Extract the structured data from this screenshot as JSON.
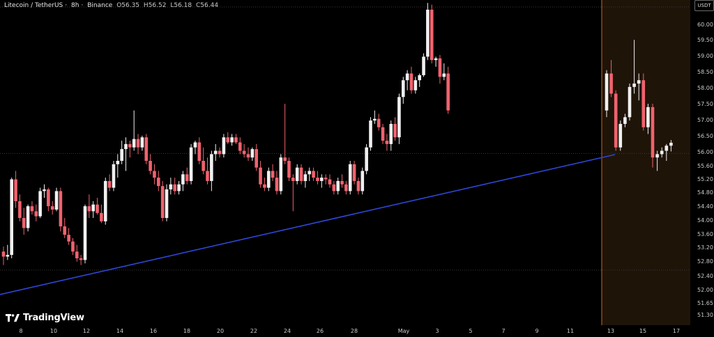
{
  "header": {
    "symbol": "Litecoin / TetherUS",
    "interval": "8h",
    "exchange": "Binance",
    "open": "O56.35",
    "high": "H56.52",
    "low": "L56.18",
    "close": "C56.44"
  },
  "unit_badge": "USDT",
  "brand": "TradingView",
  "colors": {
    "up": "#f0f0f0",
    "down": "#f0626e",
    "trendline": "#2f46d8",
    "highlight": "#1f1408",
    "highlight_edge": "#c86a1e",
    "background": "#000000"
  },
  "chart_data": {
    "type": "candlestick",
    "ylim": [
      51.0,
      60.65
    ],
    "y_ticks": [
      "60.00",
      "59.50",
      "59.00",
      "58.50",
      "58.00",
      "57.50",
      "57.00",
      "56.50",
      "56.00",
      "55.60",
      "55.20",
      "54.80",
      "54.40",
      "54.00",
      "53.60",
      "53.20",
      "52.80",
      "52.40",
      "52.00",
      "51.65",
      "51.30"
    ],
    "x_ticks": [
      "8",
      "10",
      "12",
      "14",
      "16",
      "18",
      "20",
      "22",
      "24",
      "26",
      "28",
      "May",
      "3",
      "5",
      "7",
      "9",
      "11",
      "13",
      "15",
      "17"
    ],
    "reference_lines": [
      60.48,
      56.12,
      52.65
    ],
    "trendline": {
      "from": {
        "index": 0,
        "price": 52.15
      },
      "to": {
        "index": 153,
        "price": 55.95
      }
    },
    "highlight_zone": {
      "from_index": 137,
      "to": "end"
    },
    "candles": [
      [
        53.2,
        53.35,
        52.8,
        53.05
      ],
      [
        53.05,
        53.4,
        52.95,
        53.1
      ],
      [
        53.1,
        55.4,
        53.0,
        55.35
      ],
      [
        55.35,
        55.6,
        54.5,
        54.7
      ],
      [
        54.7,
        54.9,
        54.1,
        54.2
      ],
      [
        54.2,
        54.5,
        53.7,
        53.9
      ],
      [
        53.9,
        54.6,
        53.8,
        54.55
      ],
      [
        54.55,
        54.7,
        54.3,
        54.4
      ],
      [
        54.4,
        54.6,
        54.1,
        54.25
      ],
      [
        54.25,
        55.1,
        54.2,
        55.0
      ],
      [
        55.0,
        55.2,
        54.8,
        55.05
      ],
      [
        55.05,
        55.1,
        54.4,
        54.55
      ],
      [
        54.55,
        54.7,
        54.3,
        54.45
      ],
      [
        54.45,
        55.1,
        54.4,
        55.0
      ],
      [
        55.0,
        55.1,
        53.8,
        53.95
      ],
      [
        53.95,
        54.2,
        53.6,
        53.7
      ],
      [
        53.7,
        53.9,
        53.4,
        53.5
      ],
      [
        53.5,
        53.6,
        53.1,
        53.2
      ],
      [
        53.2,
        53.4,
        52.9,
        53.0
      ],
      [
        53.0,
        53.1,
        52.8,
        52.95
      ],
      [
        52.95,
        54.6,
        52.85,
        54.55
      ],
      [
        54.55,
        54.9,
        54.2,
        54.4
      ],
      [
        54.4,
        54.7,
        54.2,
        54.6
      ],
      [
        54.6,
        54.8,
        54.3,
        54.35
      ],
      [
        54.35,
        54.6,
        54.05,
        54.1
      ],
      [
        54.1,
        55.4,
        54.0,
        55.3
      ],
      [
        55.3,
        55.5,
        55.0,
        55.1
      ],
      [
        55.1,
        55.9,
        55.0,
        55.8
      ],
      [
        55.8,
        56.1,
        55.4,
        55.9
      ],
      [
        55.9,
        56.5,
        55.8,
        56.25
      ],
      [
        56.25,
        56.6,
        55.6,
        56.4
      ],
      [
        56.4,
        56.5,
        56.0,
        56.3
      ],
      [
        56.3,
        57.4,
        56.2,
        56.55
      ],
      [
        56.55,
        56.7,
        56.1,
        56.3
      ],
      [
        56.3,
        56.65,
        56.2,
        56.6
      ],
      [
        56.6,
        56.7,
        55.8,
        55.9
      ],
      [
        55.9,
        56.1,
        55.5,
        55.6
      ],
      [
        55.6,
        55.8,
        55.2,
        55.4
      ],
      [
        55.4,
        55.6,
        55.0,
        55.15
      ],
      [
        55.15,
        55.3,
        54.1,
        54.2
      ],
      [
        54.2,
        55.2,
        54.1,
        55.05
      ],
      [
        55.05,
        55.4,
        54.9,
        55.2
      ],
      [
        55.2,
        55.4,
        54.9,
        55.0
      ],
      [
        55.0,
        55.3,
        54.9,
        55.2
      ],
      [
        55.2,
        55.6,
        55.0,
        55.5
      ],
      [
        55.5,
        55.7,
        55.2,
        55.3
      ],
      [
        55.3,
        56.4,
        55.2,
        56.3
      ],
      [
        56.3,
        56.5,
        56.1,
        56.45
      ],
      [
        56.45,
        56.6,
        55.8,
        55.9
      ],
      [
        55.9,
        56.3,
        55.5,
        55.6
      ],
      [
        55.6,
        56.0,
        55.2,
        55.3
      ],
      [
        55.3,
        56.2,
        55.0,
        56.1
      ],
      [
        56.1,
        56.4,
        55.9,
        56.2
      ],
      [
        56.2,
        56.3,
        56.0,
        56.1
      ],
      [
        56.1,
        56.7,
        56.0,
        56.6
      ],
      [
        56.6,
        56.75,
        56.4,
        56.45
      ],
      [
        56.45,
        56.7,
        56.35,
        56.6
      ],
      [
        56.6,
        56.7,
        56.4,
        56.45
      ],
      [
        56.45,
        56.6,
        56.1,
        56.2
      ],
      [
        56.2,
        56.4,
        56.0,
        56.1
      ],
      [
        56.1,
        56.3,
        55.9,
        56.0
      ],
      [
        56.0,
        56.3,
        55.9,
        56.25
      ],
      [
        56.25,
        56.4,
        55.6,
        55.7
      ],
      [
        55.7,
        55.9,
        55.1,
        55.2
      ],
      [
        55.2,
        55.4,
        55.0,
        55.1
      ],
      [
        55.1,
        55.7,
        55.0,
        55.6
      ],
      [
        55.6,
        55.8,
        55.3,
        55.4
      ],
      [
        55.4,
        55.6,
        54.9,
        55.0
      ],
      [
        55.0,
        56.1,
        54.9,
        56.0
      ],
      [
        56.0,
        57.6,
        55.8,
        55.9
      ],
      [
        55.9,
        56.0,
        55.3,
        55.4
      ],
      [
        55.4,
        55.5,
        54.4,
        55.3
      ],
      [
        55.3,
        55.8,
        55.2,
        55.7
      ],
      [
        55.7,
        55.8,
        55.2,
        55.3
      ],
      [
        55.3,
        55.6,
        55.1,
        55.5
      ],
      [
        55.5,
        55.7,
        55.3,
        55.6
      ],
      [
        55.6,
        55.7,
        55.3,
        55.4
      ],
      [
        55.4,
        55.6,
        55.2,
        55.3
      ],
      [
        55.3,
        55.5,
        55.1,
        55.4
      ],
      [
        55.4,
        55.5,
        55.2,
        55.35
      ],
      [
        55.35,
        55.5,
        55.1,
        55.2
      ],
      [
        55.2,
        55.3,
        54.9,
        55.0
      ],
      [
        55.0,
        55.4,
        54.9,
        55.3
      ],
      [
        55.3,
        55.5,
        55.1,
        55.2
      ],
      [
        55.2,
        55.3,
        54.9,
        55.0
      ],
      [
        55.0,
        55.9,
        54.9,
        55.8
      ],
      [
        55.8,
        55.9,
        55.2,
        55.3
      ],
      [
        55.3,
        55.4,
        54.9,
        55.0
      ],
      [
        55.0,
        55.7,
        54.9,
        55.6
      ],
      [
        55.6,
        56.4,
        55.5,
        56.3
      ],
      [
        56.3,
        57.2,
        56.2,
        57.1
      ],
      [
        57.1,
        57.4,
        57.0,
        57.15
      ],
      [
        57.15,
        57.3,
        56.8,
        56.9
      ],
      [
        56.9,
        57.0,
        56.4,
        56.5
      ],
      [
        56.5,
        56.7,
        56.2,
        56.4
      ],
      [
        56.4,
        57.1,
        56.2,
        57.0
      ],
      [
        57.0,
        57.2,
        56.5,
        56.6
      ],
      [
        56.6,
        57.9,
        56.4,
        57.8
      ],
      [
        57.8,
        58.4,
        57.6,
        58.3
      ],
      [
        58.3,
        58.6,
        58.0,
        58.5
      ],
      [
        58.5,
        58.7,
        57.9,
        58.0
      ],
      [
        58.0,
        58.4,
        57.9,
        58.3
      ],
      [
        58.3,
        58.5,
        58.1,
        58.45
      ],
      [
        58.45,
        59.1,
        58.4,
        59.0
      ],
      [
        59.0,
        60.6,
        58.9,
        60.4
      ],
      [
        60.4,
        60.55,
        58.8,
        58.9
      ],
      [
        58.9,
        59.0,
        58.7,
        58.95
      ],
      [
        58.95,
        59.05,
        58.2,
        58.4
      ],
      [
        58.4,
        58.8,
        58.3,
        58.5
      ],
      [
        58.5,
        58.7,
        57.3,
        57.4
      ]
    ],
    "extra_candles_note": ""
  }
}
